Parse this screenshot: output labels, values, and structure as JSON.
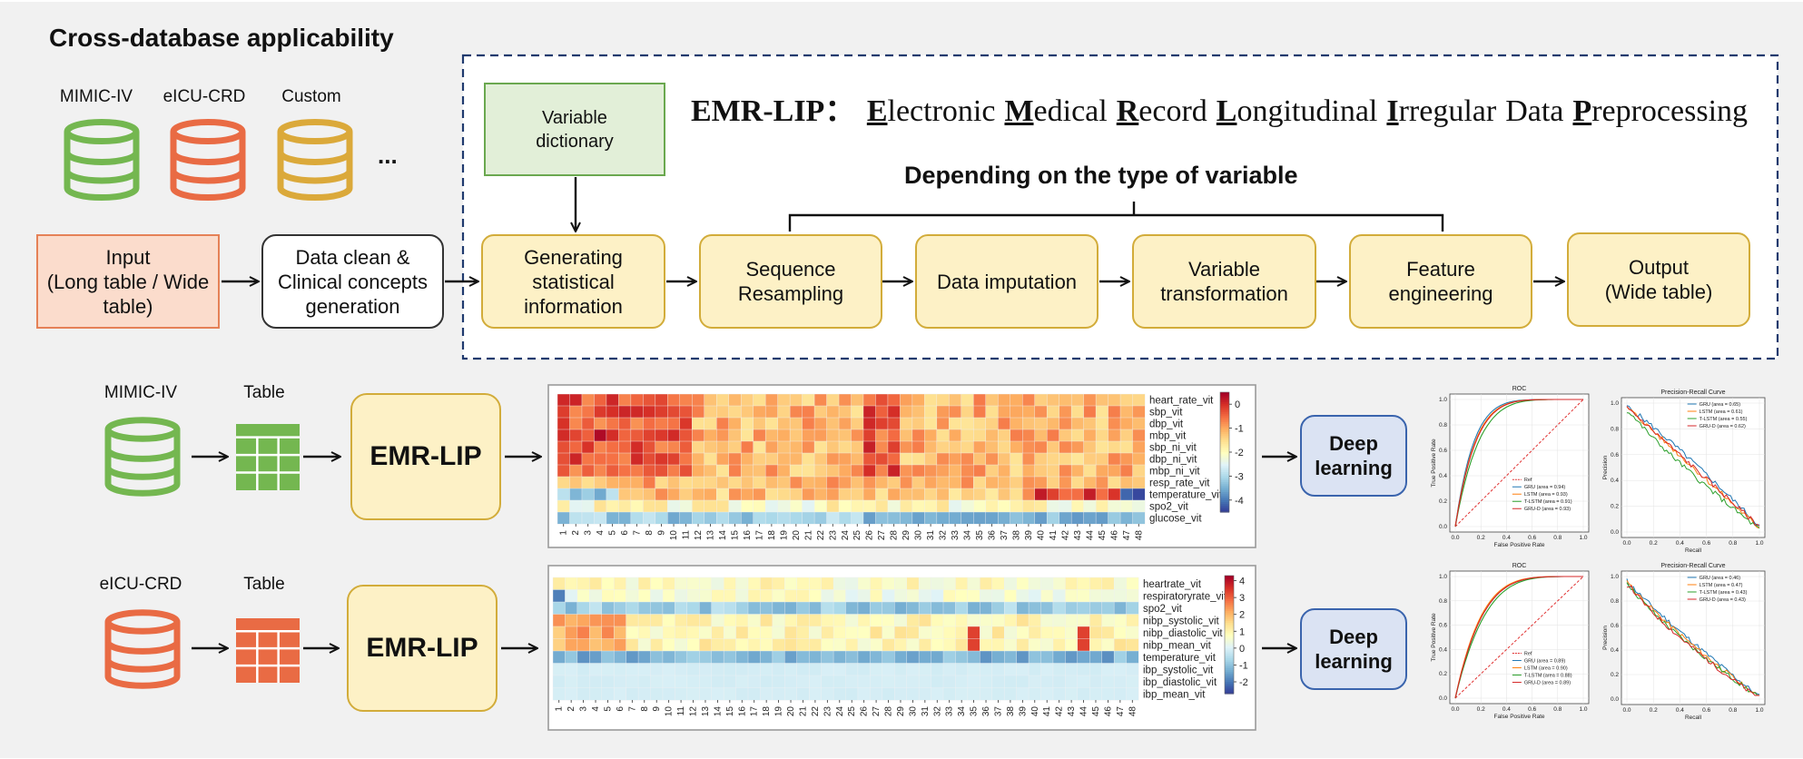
{
  "header": {
    "title": "Cross-database applicability",
    "databases": [
      "MIMIC-IV",
      "eICU-CRD",
      "Custom"
    ],
    "ellipsis": "..."
  },
  "colors": {
    "green_db": "#74b750",
    "orange_db": "#e96b44",
    "yellow_db": "#dba93a",
    "step_fill": "#fdf1c6",
    "step_border": "#d2ac3a",
    "dictionary_fill": "#e2efd8",
    "input_fill": "#fbdccc",
    "deep_fill": "#dbe3f3",
    "deep_border": "#3a64ad",
    "dashed_border": "#1f3a6e"
  },
  "pipeline": {
    "input_label": "Input\n(Long table / Wide\ntable)",
    "clean_label": "Data clean &\nClinical concepts\ngeneration",
    "dictionary_label": "Variable\ndictionary",
    "emr_title_prefix": "EMR-LIP：",
    "emr_title_words": [
      {
        "initial": "E",
        "rest": "lectronic"
      },
      {
        "initial": "M",
        "rest": "edical"
      },
      {
        "initial": "R",
        "rest": "ecord"
      },
      {
        "initial": "L",
        "rest": "ongitudinal"
      },
      {
        "initial": "I",
        "rest": "rregular"
      },
      {
        "initial": "",
        "rest": "Data"
      },
      {
        "initial": "P",
        "rest": "reprocessing"
      }
    ],
    "depending_label": "Depending on the type of variable",
    "steps": [
      "Generating\nstatistical\ninformation",
      "Sequence\nResampling",
      "Data imputation",
      "Variable\ntransformation",
      "Feature\nengineering",
      "Output\n(Wide table)"
    ]
  },
  "rows": [
    {
      "db_label": "MIMIC-IV",
      "table_label": "Table",
      "emr_label": "EMR-LIP",
      "deep_label": "Deep\nlearning",
      "heatmap": {
        "variables": [
          "heart_rate_vit",
          "sbp_vit",
          "dbp_vit",
          "mbp_vit",
          "sbp_ni_vit",
          "dbp_ni_vit",
          "mbp_ni_vit",
          "resp_rate_vit",
          "temperature_vit",
          "spo2_vit",
          "glucose_vit"
        ],
        "x_ticks": [
          "1",
          "2",
          "3",
          "4",
          "5",
          "6",
          "7",
          "8",
          "9",
          "10",
          "11",
          "12",
          "13",
          "14",
          "15",
          "16",
          "17",
          "18",
          "19",
          "20",
          "21",
          "22",
          "23",
          "24",
          "25",
          "26",
          "27",
          "28",
          "29",
          "30",
          "31",
          "32",
          "33",
          "34",
          "35",
          "36",
          "37",
          "38",
          "39",
          "40",
          "41",
          "42",
          "43",
          "44",
          "45",
          "46",
          "47",
          "48"
        ],
        "colorbar_ticks": [
          "0",
          "-1",
          "-2",
          "-3",
          "-4"
        ],
        "colorbar_range": [
          -4.5,
          0.5
        ]
      },
      "roc": {
        "title": "ROC",
        "xlabel": "False Positive Rate",
        "ylabel": "True Positive Rate",
        "ticks": [
          "0.0",
          "0.2",
          "0.4",
          "0.6",
          "0.8",
          "1.0"
        ],
        "legend": [
          "Ref",
          "GRU (area = 0.94)",
          "LSTM (area = 0.93)",
          "T-LSTM (area = 0.91)",
          "GRU-D (area = 0.93)"
        ]
      },
      "pr": {
        "title": "Precision-Recall Curve",
        "xlabel": "Recall",
        "ylabel": "Precision",
        "ticks": [
          "0.0",
          "0.2",
          "0.4",
          "0.6",
          "0.8",
          "1.0"
        ],
        "legend": [
          "GRU (area = 0.65)",
          "LSTM (area = 0.61)",
          "T-LSTM (area = 0.55)",
          "GRU-D (area = 0.62)"
        ]
      }
    },
    {
      "db_label": "eICU-CRD",
      "table_label": "Table",
      "emr_label": "EMR-LIP",
      "deep_label": "Deep\nlearning",
      "heatmap": {
        "variables": [
          "heartrate_vit",
          "respiratoryrate_vit",
          "spo2_vit",
          "nibp_systolic_vit",
          "nibp_diastolic_vit",
          "nibp_mean_vit",
          "temperature_vit",
          "ibp_systolic_vit",
          "ibp_diastolic_vit",
          "ibp_mean_vit"
        ],
        "x_ticks": [
          "1",
          "2",
          "3",
          "4",
          "5",
          "6",
          "7",
          "8",
          "9",
          "10",
          "11",
          "12",
          "13",
          "14",
          "15",
          "16",
          "17",
          "18",
          "19",
          "20",
          "21",
          "22",
          "23",
          "24",
          "25",
          "26",
          "27",
          "28",
          "29",
          "30",
          "31",
          "32",
          "33",
          "34",
          "35",
          "36",
          "37",
          "38",
          "39",
          "40",
          "41",
          "42",
          "43",
          "44",
          "45",
          "46",
          "47",
          "48"
        ],
        "colorbar_ticks": [
          "4",
          "3",
          "2",
          "1",
          "0",
          "-1",
          "-2"
        ],
        "colorbar_range": [
          -2.7,
          4.3
        ]
      },
      "roc": {
        "title": "ROC",
        "xlabel": "False Positive Rate",
        "ylabel": "True Positive Rate",
        "ticks": [
          "0.0",
          "0.2",
          "0.4",
          "0.6",
          "0.8",
          "1.0"
        ],
        "legend": [
          "Ref",
          "GRU (area = 0.89)",
          "LSTM (area = 0.90)",
          "T-LSTM (area = 0.88)",
          "GRU-D (area = 0.89)"
        ]
      },
      "pr": {
        "title": "Precision-Recall Curve",
        "xlabel": "Recall",
        "ylabel": "Precision",
        "ticks": [
          "0.0",
          "0.2",
          "0.4",
          "0.6",
          "0.8",
          "1.0"
        ],
        "legend": [
          "GRU (area = 0.46)",
          "LSTM (area = 0.47)",
          "T-LSTM (area = 0.43)",
          "GRU-D (area = 0.43)"
        ]
      }
    }
  ]
}
